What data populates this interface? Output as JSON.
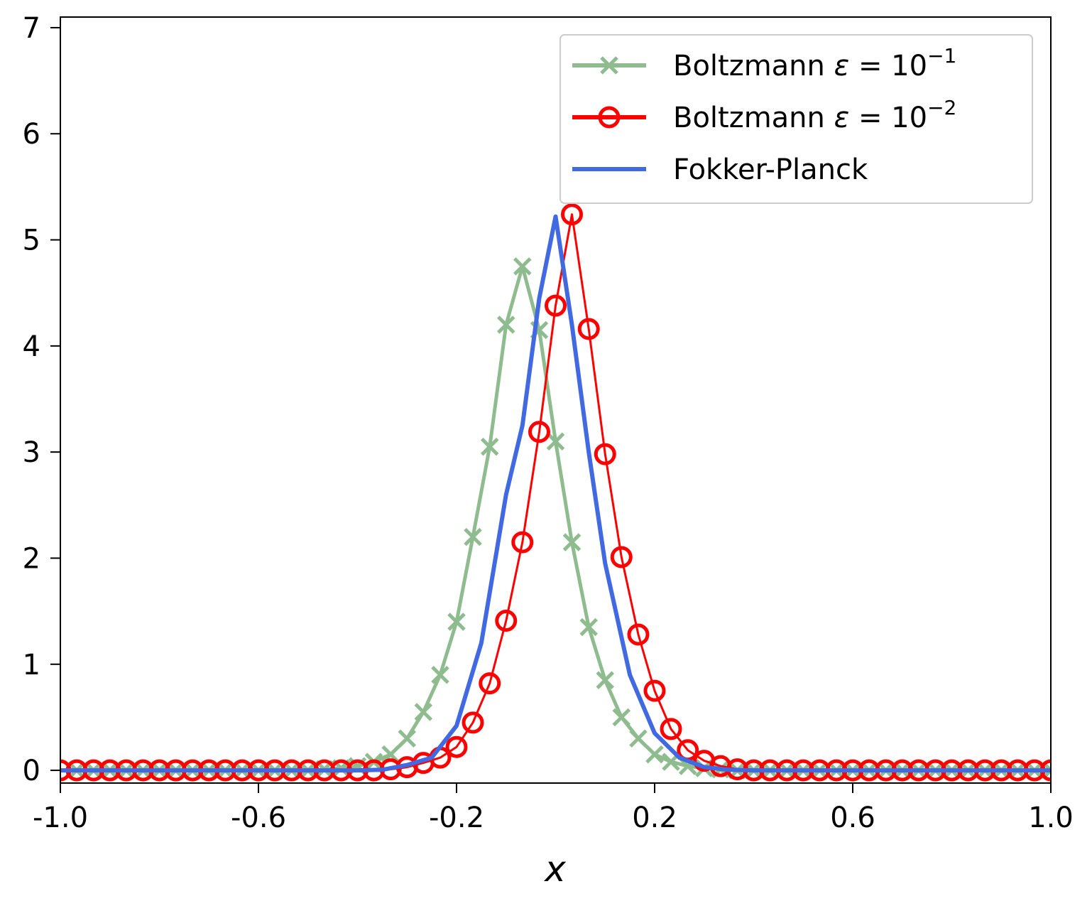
{
  "chart_data": {
    "type": "line",
    "xlabel": "x",
    "ylabel": "",
    "xlim": [
      -1.0,
      1.0
    ],
    "ylim": [
      -0.12,
      7.1
    ],
    "x_ticks": [
      "-1.0",
      "-0.6",
      "-0.2",
      "0.2",
      "0.6",
      "1.0"
    ],
    "y_ticks": [
      "0",
      "1",
      "2",
      "3",
      "4",
      "5",
      "6",
      "7"
    ],
    "grid": false,
    "legend_position": "top-right",
    "series": [
      {
        "name": "Boltzmann ε = 10^-1",
        "legend_main": "Boltzmann ",
        "legend_eps": "ε",
        "legend_eq": " = 10",
        "legend_exp": "−1",
        "color": "#8fbc8f",
        "marker": "x",
        "x": [
          -0.967,
          -0.933,
          -0.9,
          -0.867,
          -0.833,
          -0.8,
          -0.767,
          -0.733,
          -0.7,
          -0.667,
          -0.633,
          -0.6,
          -0.567,
          -0.533,
          -0.5,
          -0.467,
          -0.433,
          -0.4,
          -0.367,
          -0.333,
          -0.3,
          -0.267,
          -0.233,
          -0.2,
          -0.167,
          -0.133,
          -0.1,
          -0.067,
          -0.033,
          0.0,
          0.033,
          0.067,
          0.1,
          0.133,
          0.167,
          0.2,
          0.233,
          0.267,
          0.3,
          0.333,
          0.367,
          0.4,
          0.433,
          0.467,
          0.5,
          0.533,
          0.567,
          0.6,
          0.633,
          0.667,
          0.7,
          0.733,
          0.767,
          0.8,
          0.833,
          0.867,
          0.9,
          0.933,
          0.967,
          1.0
        ],
        "y": [
          0,
          0,
          0,
          0,
          0,
          0,
          0,
          0,
          0,
          0,
          0,
          0,
          0,
          0,
          0,
          0.01,
          0.02,
          0.04,
          0.08,
          0.15,
          0.3,
          0.55,
          0.9,
          1.4,
          2.2,
          3.05,
          4.2,
          4.75,
          4.15,
          3.1,
          2.15,
          1.35,
          0.85,
          0.5,
          0.3,
          0.15,
          0.08,
          0.04,
          0.02,
          0.01,
          0,
          0,
          0,
          0,
          0,
          0,
          0,
          0,
          0,
          0,
          0,
          0,
          0,
          0,
          0,
          0,
          0,
          0,
          0,
          0
        ]
      },
      {
        "name": "Boltzmann ε = 10^-2",
        "legend_main": "Boltzmann ",
        "legend_eps": "ε",
        "legend_eq": " = 10",
        "legend_exp": "−2",
        "color": "#ff0000",
        "marker": "o",
        "x": [
          -1.0,
          -0.967,
          -0.933,
          -0.9,
          -0.867,
          -0.833,
          -0.8,
          -0.767,
          -0.733,
          -0.7,
          -0.667,
          -0.633,
          -0.6,
          -0.567,
          -0.533,
          -0.5,
          -0.467,
          -0.433,
          -0.4,
          -0.367,
          -0.333,
          -0.3,
          -0.267,
          -0.233,
          -0.2,
          -0.167,
          -0.133,
          -0.1,
          -0.067,
          -0.033,
          0.0,
          0.033,
          0.067,
          0.1,
          0.133,
          0.167,
          0.2,
          0.233,
          0.267,
          0.3,
          0.333,
          0.367,
          0.4,
          0.433,
          0.467,
          0.5,
          0.533,
          0.567,
          0.6,
          0.633,
          0.667,
          0.7,
          0.733,
          0.767,
          0.8,
          0.833,
          0.867,
          0.9,
          0.933,
          0.967,
          1.0
        ],
        "y": [
          0,
          0,
          0,
          0,
          0,
          0,
          0,
          0,
          0,
          0,
          0,
          0,
          0,
          0,
          0,
          0,
          0,
          0,
          0,
          0,
          0.01,
          0.03,
          0.07,
          0.12,
          0.22,
          0.45,
          0.82,
          1.41,
          2.15,
          3.19,
          4.38,
          5.24,
          4.16,
          2.98,
          2.01,
          1.28,
          0.75,
          0.39,
          0.19,
          0.09,
          0.04,
          0.01,
          0,
          0,
          0,
          0,
          0,
          0,
          0,
          0,
          0,
          0,
          0,
          0,
          0,
          0,
          0,
          0,
          0,
          0,
          0
        ]
      },
      {
        "name": "Fokker-Planck",
        "legend_main": "Fokker-Planck",
        "legend_eps": "",
        "legend_eq": "",
        "legend_exp": "",
        "color": "#4169e1",
        "marker": "none",
        "x": [
          -1.0,
          -0.4,
          -0.35,
          -0.3,
          -0.25,
          -0.2,
          -0.15,
          -0.1,
          -0.067,
          -0.033,
          0.0,
          0.033,
          0.067,
          0.1,
          0.15,
          0.2,
          0.25,
          0.3,
          0.35,
          0.4,
          1.0
        ],
        "y": [
          0,
          0,
          0.005,
          0.05,
          0.12,
          0.42,
          1.2,
          2.6,
          3.25,
          4.45,
          5.22,
          4.2,
          3.0,
          1.95,
          0.9,
          0.35,
          0.12,
          0.03,
          0.005,
          0,
          0
        ]
      }
    ]
  }
}
